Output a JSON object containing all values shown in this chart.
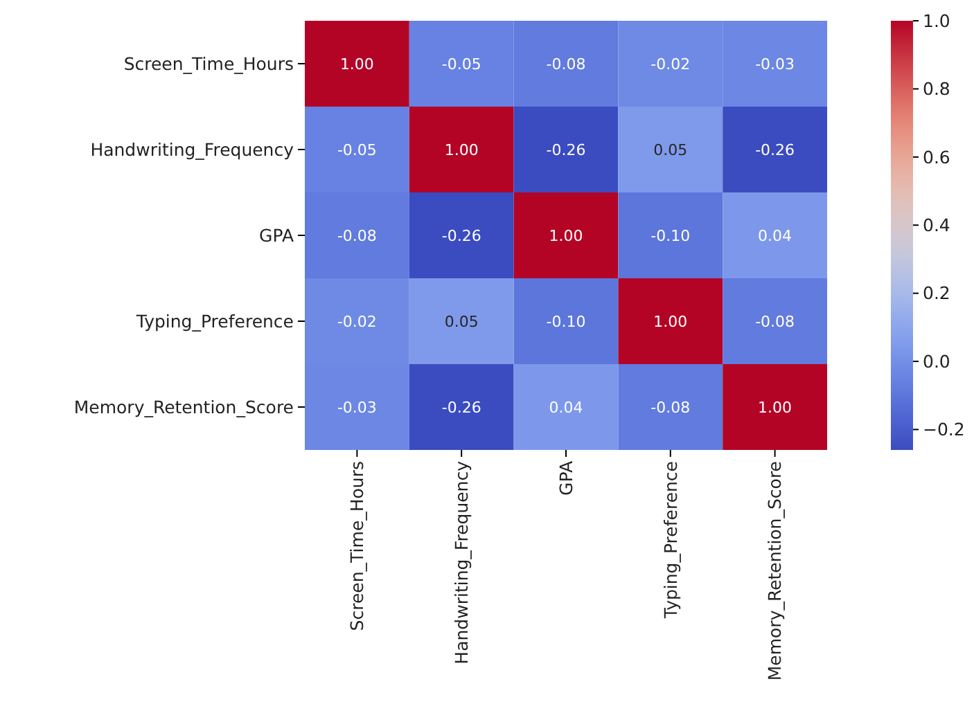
{
  "chart_data": {
    "type": "heatmap",
    "categories": [
      "Screen_Time_Hours",
      "Handwriting_Frequency",
      "GPA",
      "Typing_Preference",
      "Memory_Retention_Score"
    ],
    "y_categories": [
      "Screen_Time_Hours",
      "Handwriting_Frequency",
      "GPA",
      "Typing_Preference",
      "Memory_Retention_Score"
    ],
    "cells": [
      [
        1.0,
        -0.05,
        -0.08,
        -0.02,
        -0.03
      ],
      [
        -0.05,
        1.0,
        -0.26,
        0.05,
        -0.26
      ],
      [
        -0.08,
        -0.26,
        1.0,
        -0.1,
        0.04
      ],
      [
        -0.02,
        0.05,
        -0.1,
        1.0,
        -0.08
      ],
      [
        -0.03,
        -0.26,
        0.04,
        -0.08,
        1.0
      ]
    ],
    "cell_labels": [
      [
        "1.00",
        "-0.05",
        "-0.08",
        "-0.02",
        "-0.03"
      ],
      [
        "-0.05",
        "1.00",
        "-0.26",
        "0.05",
        "-0.26"
      ],
      [
        "-0.08",
        "-0.26",
        "1.00",
        "-0.10",
        "0.04"
      ],
      [
        "-0.02",
        "0.05",
        "-0.10",
        "1.00",
        "-0.08"
      ],
      [
        "-0.03",
        "-0.26",
        "0.04",
        "-0.08",
        "1.00"
      ]
    ],
    "clim": [
      -0.26,
      1.0
    ],
    "cticks": [
      {
        "value": -0.2,
        "label": "−0.2"
      },
      {
        "value": 0.0,
        "label": "0.0"
      },
      0.2,
      0.4,
      0.6,
      0.8,
      {
        "value": 1.0,
        "label": "1.0"
      }
    ]
  }
}
